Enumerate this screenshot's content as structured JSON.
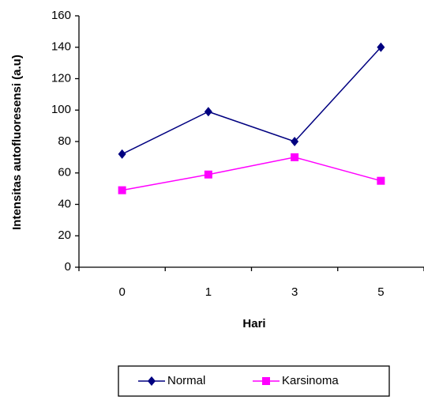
{
  "chart_data": {
    "type": "line",
    "x_label": "Hari",
    "y_label": "Intensitas autofluoresensi (a.u)",
    "categories": [
      "0",
      "1",
      "3",
      "5"
    ],
    "series": [
      {
        "name": "Normal",
        "color": "#000080",
        "marker": "diamond",
        "values": [
          72,
          99,
          80,
          140
        ]
      },
      {
        "name": "Karsinoma",
        "color": "#ff00ff",
        "marker": "square",
        "values": [
          49,
          59,
          70,
          55
        ]
      }
    ],
    "ylim": [
      0,
      160
    ],
    "yticks": [
      0,
      20,
      40,
      60,
      80,
      100,
      120,
      140,
      160
    ],
    "grid": false,
    "legend": "bottom"
  }
}
